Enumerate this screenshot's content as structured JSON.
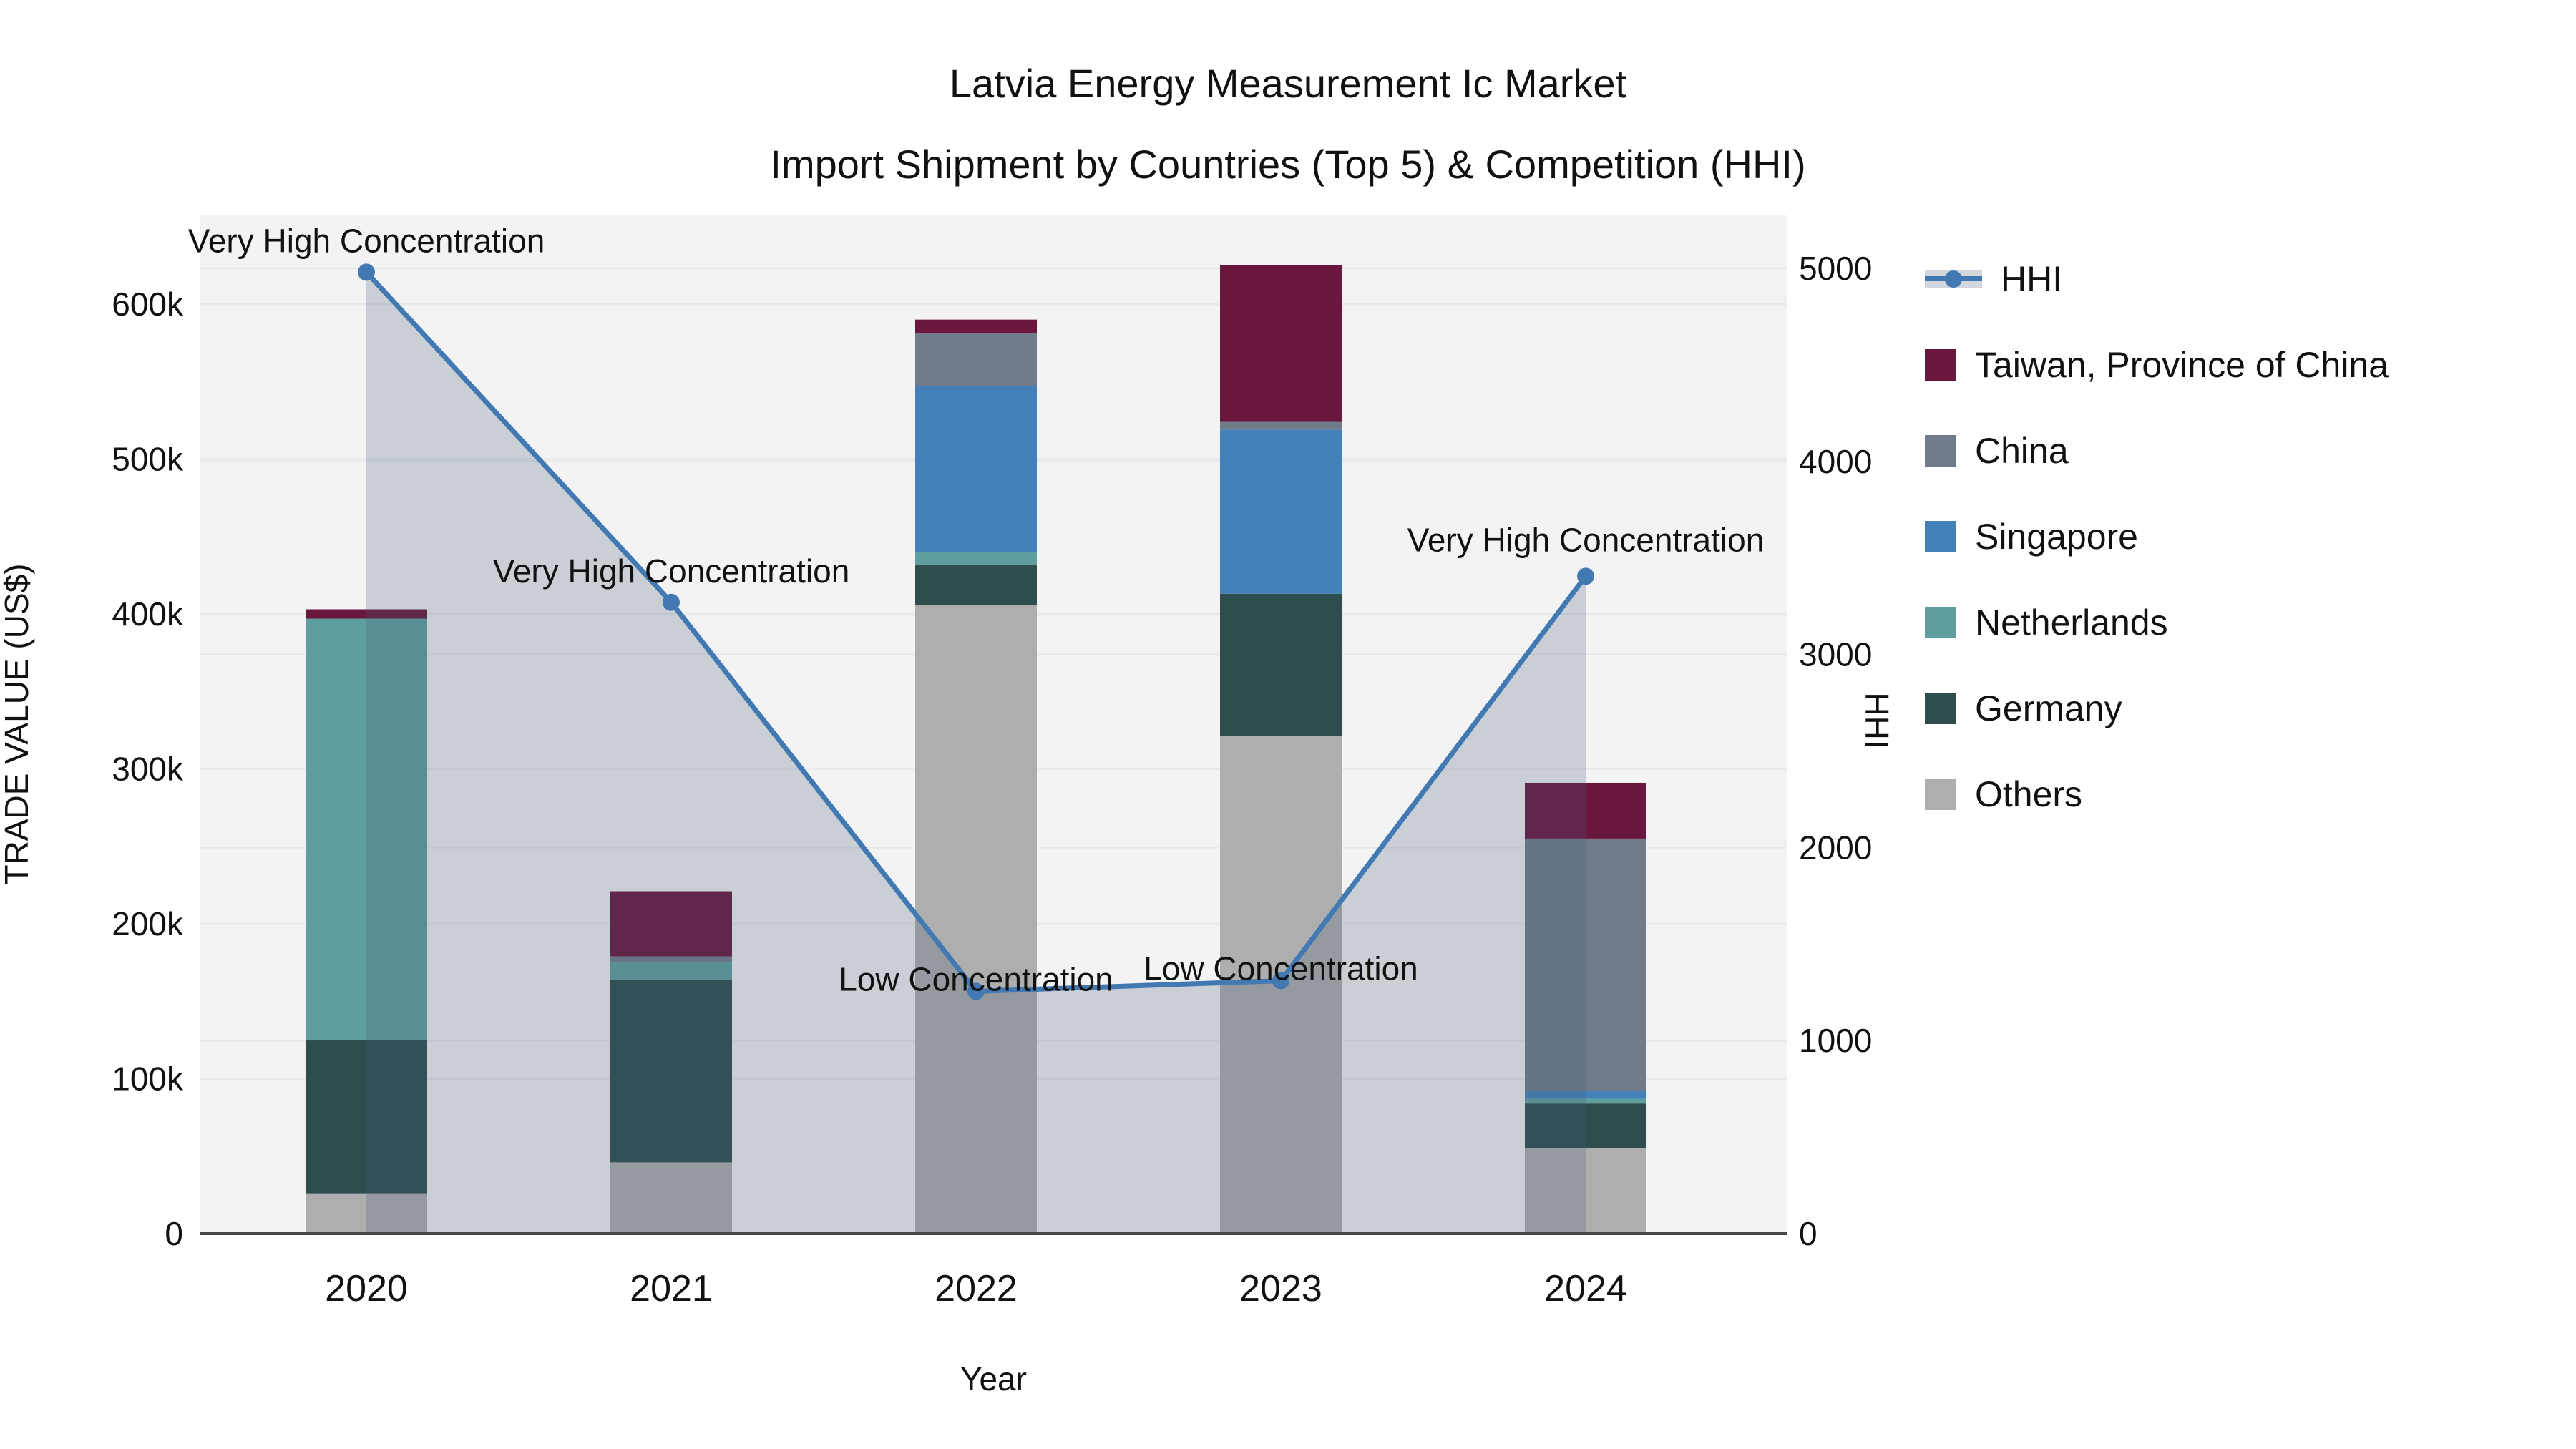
{
  "header": {
    "title_line1": "Latvia Energy Measurement Ic Market",
    "title_line2": "Import Shipment by Countries (Top 5) & Competition (HHI)"
  },
  "axes": {
    "x_title": "Year",
    "y_left_title": "TRADE VALUE (US$)",
    "y_right_title": "HHI",
    "y_left_ticks": [
      {
        "value": 0,
        "label": "0"
      },
      {
        "value": 100000,
        "label": "100k"
      },
      {
        "value": 200000,
        "label": "200k"
      },
      {
        "value": 300000,
        "label": "300k"
      },
      {
        "value": 400000,
        "label": "400k"
      },
      {
        "value": 500000,
        "label": "500k"
      },
      {
        "value": 600000,
        "label": "600k"
      }
    ],
    "y_right_ticks": [
      {
        "value": 0,
        "label": "0"
      },
      {
        "value": 1000,
        "label": "1000"
      },
      {
        "value": 2000,
        "label": "2000"
      },
      {
        "value": 3000,
        "label": "3000"
      },
      {
        "value": 4000,
        "label": "4000"
      },
      {
        "value": 5000,
        "label": "5000"
      }
    ]
  },
  "legend": {
    "hhi_label": "HHI",
    "entries": [
      "Taiwan, Province of China",
      "China",
      "Singapore",
      "Netherlands",
      "Germany",
      "Others"
    ]
  },
  "colors": {
    "hhi_line": "#4279b3",
    "hhi_fill": "rgba(70,90,120,0.24)",
    "plot_bg": "#f3f3f4",
    "grid": "#e7e8ea",
    "axis_line": "#474747",
    "taiwan": "#69173d",
    "china": "#717c8b",
    "singapore": "#4481b8",
    "netherlands": "#5f9e9e",
    "germany": "#2f4d4d",
    "others": "#aeaeae"
  },
  "chart_data": {
    "type": "bar",
    "subtype": "stacked-bars-with-line",
    "categories": [
      "2020",
      "2021",
      "2022",
      "2023",
      "2024"
    ],
    "stack_order_bottom_to_top": [
      "Others",
      "Germany",
      "Netherlands",
      "Singapore",
      "China",
      "Taiwan, Province of China"
    ],
    "series": [
      {
        "name": "Others",
        "color_key": "others",
        "values": [
          26000,
          46000,
          406000,
          321000,
          55000
        ]
      },
      {
        "name": "Germany",
        "color_key": "germany",
        "values": [
          99000,
          118000,
          26000,
          92000,
          29000
        ]
      },
      {
        "name": "Netherlands",
        "color_key": "netherlands",
        "values": [
          272000,
          11000,
          8000,
          0,
          3000
        ]
      },
      {
        "name": "Singapore",
        "color_key": "singapore",
        "values": [
          0,
          0,
          107000,
          106000,
          5000
        ]
      },
      {
        "name": "China",
        "color_key": "china",
        "values": [
          0,
          4000,
          34000,
          5000,
          163000
        ]
      },
      {
        "name": "Taiwan, Province of China",
        "color_key": "taiwan",
        "values": [
          6000,
          42000,
          9000,
          101000,
          36000
        ]
      }
    ],
    "line_series": {
      "name": "HHI",
      "axis": "right",
      "values": [
        4980,
        3270,
        1255,
        1310,
        3405
      ],
      "fill_to_zero": true
    },
    "annotations": [
      {
        "category": "2020",
        "text": "Very High Concentration",
        "dy": -42
      },
      {
        "category": "2021",
        "text": "Very High Concentration",
        "dy": -42
      },
      {
        "category": "2022",
        "text": "Low Concentration",
        "dy": -15
      },
      {
        "category": "2023",
        "text": "Low Concentration",
        "dy": -15
      },
      {
        "category": "2024",
        "text": "Very High Concentration",
        "dy": -49
      }
    ],
    "ylim_left": [
      0,
      658000
    ],
    "ylim_right": [
      0,
      5280
    ],
    "grid": "on",
    "legend_position": "right"
  }
}
